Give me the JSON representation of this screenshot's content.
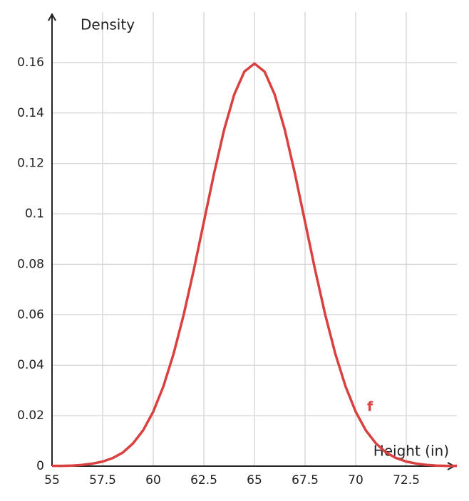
{
  "chart_data": {
    "type": "line",
    "x_label": "Height (in)",
    "y_label": "Density",
    "curve_label": "f",
    "x": [
      55,
      55.5,
      56,
      56.5,
      57,
      57.5,
      58,
      58.5,
      59,
      59.5,
      60,
      60.5,
      61,
      61.5,
      62,
      62.5,
      63,
      63.5,
      64,
      64.5,
      65,
      65.5,
      66,
      66.5,
      67,
      67.5,
      68,
      68.5,
      69,
      69.5,
      70,
      70.5,
      71,
      71.5,
      72,
      72.5,
      73,
      73.5,
      74,
      74.5,
      75
    ],
    "series": [
      {
        "name": "f",
        "color": "#d94040",
        "values": [
          0.0001,
          0.0001,
          0.0002,
          0.0005,
          0.001,
          0.0018,
          0.0032,
          0.0054,
          0.009,
          0.0142,
          0.0216,
          0.0316,
          0.0444,
          0.0599,
          0.0777,
          0.0968,
          0.1159,
          0.1333,
          0.1473,
          0.1564,
          0.1596,
          0.1564,
          0.1473,
          0.1333,
          0.1159,
          0.0968,
          0.0777,
          0.0599,
          0.0444,
          0.0316,
          0.0216,
          0.0142,
          0.009,
          0.0054,
          0.0032,
          0.0018,
          0.001,
          0.0005,
          0.0002,
          0.0001,
          0.0001
        ]
      }
    ],
    "xlim": [
      55,
      75
    ],
    "ylim": [
      0,
      0.18
    ],
    "xticks": [
      55,
      57.5,
      60,
      62.5,
      65,
      67.5,
      70,
      72.5
    ],
    "yticks": [
      0,
      0.02,
      0.04,
      0.06,
      0.08,
      0.1,
      0.12,
      0.14,
      0.16
    ],
    "grid": true
  }
}
